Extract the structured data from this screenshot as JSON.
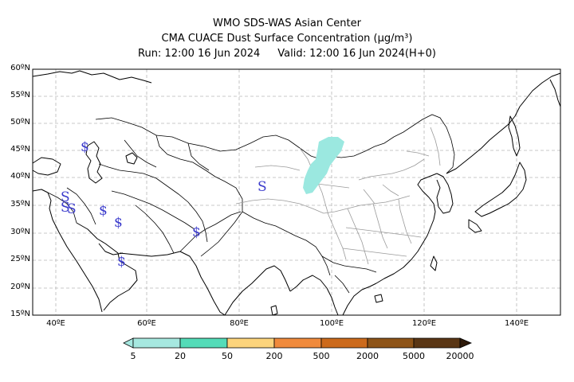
{
  "header": {
    "line1": "WMO SDS-WAS Asian Center",
    "line2": "CMA CUACE Dust Surface Concentration (μg/m³)",
    "run": "Run: 12:00 16 Jun 2024",
    "valid": "Valid: 12:00 16 Jun 2024(H+0)"
  },
  "map": {
    "lat_labels": [
      "60ºN",
      "55ºN",
      "50ºN",
      "45ºN",
      "40ºN",
      "35ºN",
      "30ºN",
      "25ºN",
      "20ºN",
      "15ºN"
    ],
    "lon_labels": [
      "40ºE",
      "60ºE",
      "80ºE",
      "100ºE",
      "120ºE",
      "140ºE"
    ],
    "dust_color": "#9be8e0",
    "symbol_color": "#3c3ccc"
  },
  "colorbar": {
    "ticks": [
      "5",
      "20",
      "50",
      "200",
      "500",
      "2000",
      "5000",
      "20000"
    ],
    "colors": [
      "#a6e8e0",
      "#54dcb8",
      "#fcd47c",
      "#f08a3c",
      "#cc6a1c",
      "#8e5418",
      "#5a3614",
      "#2e1a0a"
    ]
  }
}
